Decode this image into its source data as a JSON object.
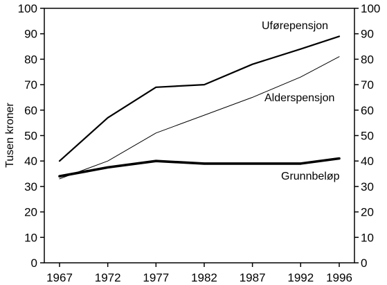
{
  "chart_data": {
    "type": "line",
    "x": [
      1967,
      1972,
      1977,
      1982,
      1987,
      1992,
      1996
    ],
    "ylabel": "Tusen kroner",
    "xlabel": "",
    "ylim": [
      0,
      100
    ],
    "y_ticks": [
      0,
      10,
      20,
      30,
      40,
      50,
      60,
      70,
      80,
      90,
      100
    ],
    "x_ticks": [
      1967,
      1972,
      1977,
      1982,
      1987,
      1992,
      1996
    ],
    "right_axis_mirrors_left": true,
    "grid": false,
    "legend": "none",
    "series": [
      {
        "name": "Uførepensjon",
        "values": [
          40,
          57,
          69,
          70,
          78,
          84,
          89
        ],
        "line_weight": "medium",
        "color": "#000000"
      },
      {
        "name": "Alderspensjon",
        "values": [
          33,
          40,
          51,
          58,
          65,
          73,
          81
        ],
        "line_weight": "thin",
        "color": "#000000"
      },
      {
        "name": "Grunnbeløp",
        "values": [
          34,
          37.5,
          40,
          39,
          39,
          39,
          41
        ],
        "line_weight": "thick",
        "color": "#000000"
      }
    ]
  }
}
